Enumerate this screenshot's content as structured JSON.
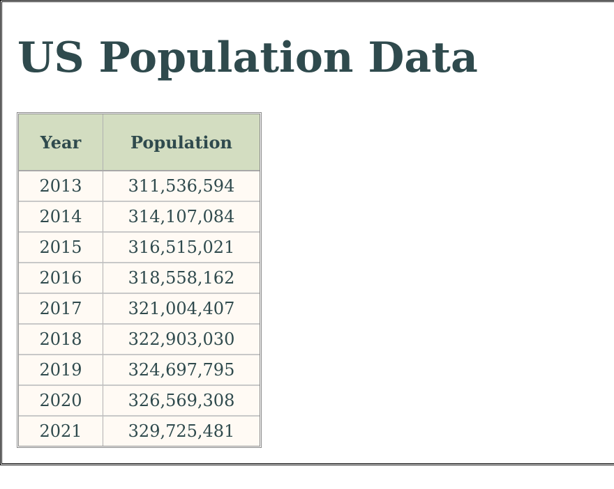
{
  "page": {
    "title": "US Population Data"
  },
  "table": {
    "headers": {
      "year": "Year",
      "population": "Population"
    },
    "rows": [
      {
        "year": "2013",
        "population": "311,536,594"
      },
      {
        "year": "2014",
        "population": "314,107,084"
      },
      {
        "year": "2015",
        "population": "316,515,021"
      },
      {
        "year": "2016",
        "population": "318,558,162"
      },
      {
        "year": "2017",
        "population": "321,004,407"
      },
      {
        "year": "2018",
        "population": "322,903,030"
      },
      {
        "year": "2019",
        "population": "324,697,795"
      },
      {
        "year": "2020",
        "population": "326,569,308"
      },
      {
        "year": "2021",
        "population": "329,725,481"
      }
    ]
  },
  "colors": {
    "title_text": "#2f4a4d",
    "header_bg": "#d3ddc1",
    "cell_bg": "#fffaf4"
  }
}
